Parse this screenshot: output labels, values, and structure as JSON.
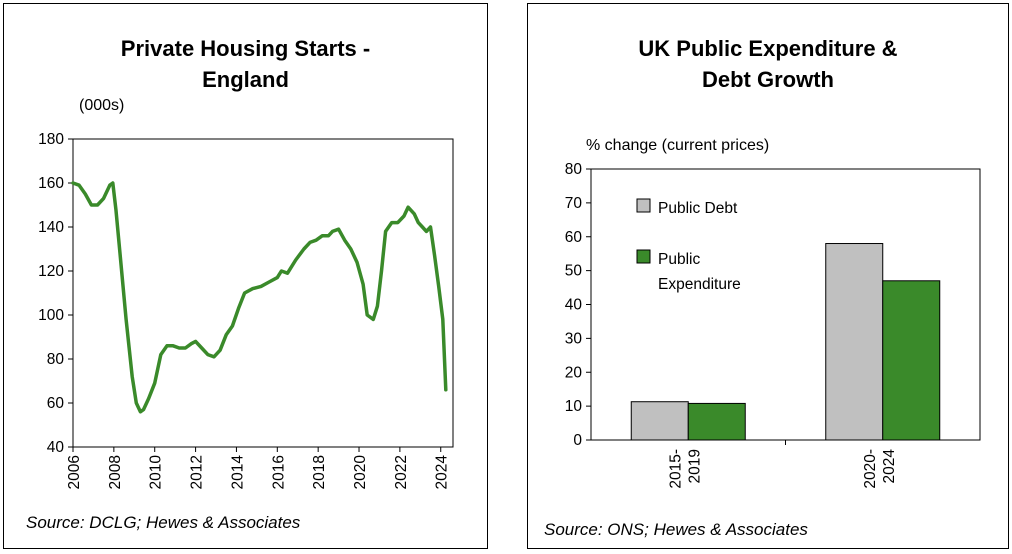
{
  "charts": {
    "housing": {
      "title_line1": "Private Housing Starts -",
      "title_line2": "England",
      "unit": "(000s)",
      "source": "Source: DCLG; Hewes & Associates"
    },
    "expenditure": {
      "title_line1": "UK Public Expenditure &",
      "title_line2": "Debt Growth",
      "unit": "% change (current prices)",
      "source": "Source: ONS; Hewes & Associates"
    }
  },
  "colors": {
    "green": "#3a8a2a",
    "grey": "#c0c0c0"
  },
  "chart_data": [
    {
      "type": "line",
      "title": "Private Housing Starts - England",
      "ylabel": "(000s)",
      "xlim": [
        2006,
        2024.6
      ],
      "ylim": [
        40,
        180
      ],
      "yticks": [
        40,
        60,
        80,
        100,
        120,
        140,
        160,
        180
      ],
      "xticks": [
        2006,
        2008,
        2010,
        2012,
        2014,
        2016,
        2018,
        2020,
        2022,
        2024
      ],
      "grid": false,
      "series": [
        {
          "color": "#3a8a2a",
          "x": [
            2006.0,
            2006.3,
            2006.6,
            2006.9,
            2007.2,
            2007.5,
            2007.8,
            2007.95,
            2008.1,
            2008.3,
            2008.6,
            2008.9,
            2009.1,
            2009.3,
            2009.45,
            2009.7,
            2010.0,
            2010.3,
            2010.6,
            2010.9,
            2011.2,
            2011.5,
            2011.8,
            2012.0,
            2012.3,
            2012.6,
            2012.9,
            2013.2,
            2013.5,
            2013.8,
            2014.1,
            2014.4,
            2014.8,
            2015.2,
            2015.6,
            2016.0,
            2016.2,
            2016.5,
            2016.9,
            2017.3,
            2017.6,
            2017.9,
            2018.2,
            2018.5,
            2018.7,
            2019.0,
            2019.3,
            2019.6,
            2019.9,
            2020.2,
            2020.4,
            2020.7,
            2020.9,
            2021.1,
            2021.3,
            2021.6,
            2021.9,
            2022.2,
            2022.4,
            2022.7,
            2022.9,
            2023.1,
            2023.3,
            2023.5,
            2023.7,
            2023.9,
            2024.1,
            2024.25
          ],
          "values": [
            160,
            159,
            155,
            150,
            150,
            153,
            159,
            160,
            148,
            128,
            98,
            72,
            60,
            56,
            57,
            62,
            69,
            82,
            86,
            86,
            85,
            85,
            87,
            88,
            85,
            82,
            81,
            84,
            91,
            95,
            103,
            110,
            112,
            113,
            115,
            117,
            120,
            119,
            125,
            130,
            133,
            134,
            136,
            136,
            138,
            139,
            134,
            130,
            124,
            114,
            100,
            98,
            104,
            120,
            138,
            142,
            142,
            145,
            149,
            146,
            142,
            140,
            138,
            140,
            127,
            113,
            98,
            66
          ]
        }
      ]
    },
    {
      "type": "bar",
      "title": "UK Public Expenditure & Debt Growth",
      "ylabel": "% change (current prices)",
      "categories": [
        "2015-\n2019",
        "2020-\n2024"
      ],
      "category_labels": [
        [
          "2015-",
          "2019"
        ],
        [
          "2020-",
          "2024"
        ]
      ],
      "ylim": [
        0,
        80
      ],
      "yticks": [
        0,
        10,
        20,
        30,
        40,
        50,
        60,
        70,
        80
      ],
      "grid": false,
      "legend_position": "top-left",
      "series": [
        {
          "name": "Public Debt",
          "legend_lines": [
            "Public Debt"
          ],
          "color": "#c0c0c0",
          "values": [
            11.3,
            58.0
          ]
        },
        {
          "name": "Public Expenditure",
          "legend_lines": [
            "Public",
            "Expenditure"
          ],
          "color": "#3a8a2a",
          "values": [
            10.8,
            47.0
          ]
        }
      ]
    }
  ]
}
